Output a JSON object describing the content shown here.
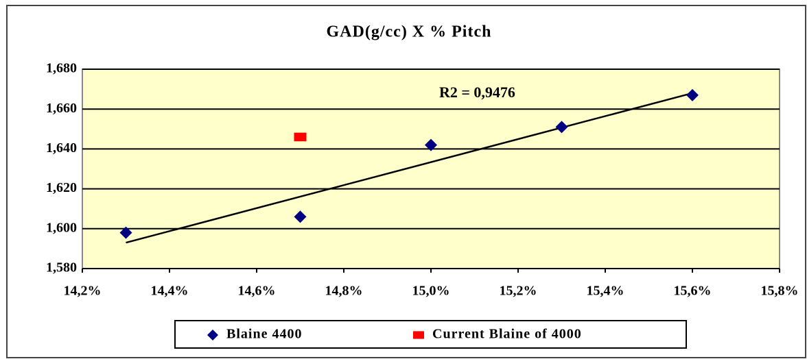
{
  "chart_data": {
    "type": "scatter",
    "title": "GAD(g/cc)  X  % Pitch",
    "annotation": "R2 = 0,9476",
    "xlim": [
      14.2,
      15.8
    ],
    "xticks": [
      {
        "value": 14.2,
        "label": "14,2%"
      },
      {
        "value": 14.4,
        "label": "14,4%"
      },
      {
        "value": 14.6,
        "label": "14,6%"
      },
      {
        "value": 14.8,
        "label": "14,8%"
      },
      {
        "value": 15.0,
        "label": "15,0%"
      },
      {
        "value": 15.2,
        "label": "15,2%"
      },
      {
        "value": 15.4,
        "label": "15,4%"
      },
      {
        "value": 15.6,
        "label": "15,6%"
      },
      {
        "value": 15.8,
        "label": "15,8%"
      }
    ],
    "ylim": [
      1.58,
      1.68
    ],
    "yticks": [
      {
        "value": 1.58,
        "label": "1,580"
      },
      {
        "value": 1.6,
        "label": "1,600"
      },
      {
        "value": 1.62,
        "label": "1,620"
      },
      {
        "value": 1.64,
        "label": "1,640"
      },
      {
        "value": 1.66,
        "label": "1,660"
      },
      {
        "value": 1.68,
        "label": "1,680"
      }
    ],
    "grid": true,
    "series": [
      {
        "name": "Blaine 4400",
        "color": "#000080",
        "marker": "diamond",
        "x": [
          14.3,
          14.7,
          15.0,
          15.3,
          15.6
        ],
        "values": [
          1.598,
          1.606,
          1.642,
          1.651,
          1.667
        ]
      },
      {
        "name": "Current Blaine of 4000",
        "color": "#ff0000",
        "marker": "square",
        "x": [
          14.7
        ],
        "values": [
          1.646
        ]
      }
    ],
    "trendline": {
      "color": "#000000",
      "x": [
        14.3,
        15.6
      ],
      "values": [
        1.593,
        1.668
      ]
    }
  }
}
